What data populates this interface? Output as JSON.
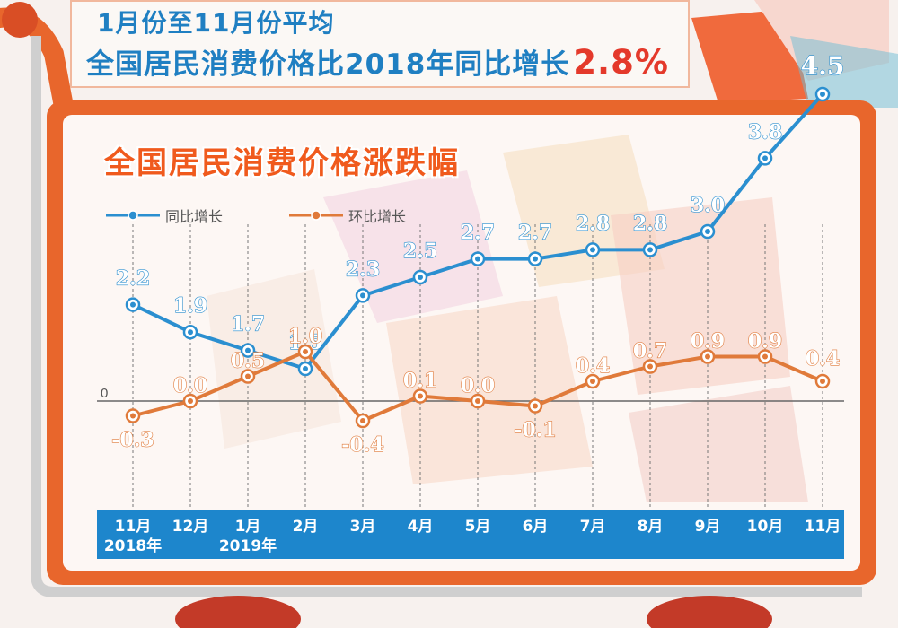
{
  "banner": {
    "line1": "1月份至11月份平均",
    "line2_prefix": "全国居民消费价格比2018年同比增长",
    "line2_value": "2.8%"
  },
  "chart_data": {
    "type": "line",
    "title": "全国居民消费价格涨跌幅",
    "categories": [
      "11月",
      "12月",
      "1月",
      "2月",
      "3月",
      "4月",
      "5月",
      "6月",
      "7月",
      "8月",
      "9月",
      "10月",
      "11月"
    ],
    "category_sublabels": [
      "2018年",
      "",
      "2019年",
      "",
      "",
      "",
      "",
      "",
      "",
      "",
      "",
      "",
      ""
    ],
    "zero_label": "0",
    "series": [
      {
        "name": "同比增长",
        "color": "#2b8fd0",
        "values": [
          2.2,
          1.9,
          1.7,
          1.5,
          2.3,
          2.5,
          2.7,
          2.7,
          2.8,
          2.8,
          3.0,
          3.8,
          4.5
        ],
        "labels": [
          "2.2",
          "1.9",
          "1.7",
          "1.5",
          "2.3",
          "2.5",
          "2.7",
          "2.7",
          "2.8",
          "2.8",
          "3.0",
          "3.8",
          "4.5"
        ]
      },
      {
        "name": "环比增长",
        "color": "#e07a3a",
        "values": [
          -0.3,
          0.0,
          0.5,
          1.0,
          -0.4,
          0.1,
          0.0,
          -0.1,
          0.4,
          0.7,
          0.9,
          0.9,
          0.4
        ],
        "labels": [
          "-0.3",
          "0.0",
          "0.5",
          "1.0",
          "-0.4",
          "0.1",
          "0.0",
          "-0.1",
          "0.4",
          "0.7",
          "0.9",
          "0.9",
          "0.4"
        ]
      }
    ],
    "grid": "vertical-dashed",
    "legend_position": "top-left"
  },
  "colors": {
    "primary_blue": "#1f7fc2",
    "accent_red": "#e4392b",
    "title_orange": "#f05a1d",
    "frame_orange": "#e8662c",
    "month_bar": "#1d86cc"
  }
}
